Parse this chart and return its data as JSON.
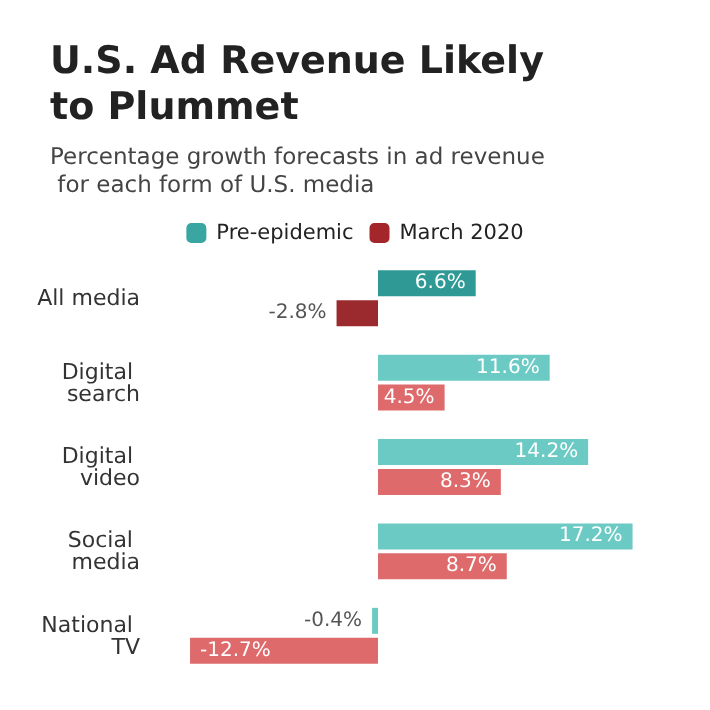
{
  "chart_data": {
    "type": "bar",
    "orientation": "horizontal",
    "title": "U.S. Ad Revenue Likely to Plummet",
    "subtitle": "Percentage growth forecasts in ad revenue for each form of U.S. media",
    "categories": [
      "All media",
      "Digital search",
      "Digital video",
      "Social media",
      "National TV"
    ],
    "series": [
      {
        "name": "Pre-epidemic",
        "color": "#3aa6a1",
        "colors": [
          "#2f9a95",
          "#6ccac5",
          "#6ccac5",
          "#6ccac5",
          "#6ccac5"
        ],
        "values": [
          6.6,
          11.6,
          14.2,
          17.2,
          -0.4
        ],
        "value_labels": [
          "6.6%",
          "11.6%",
          "14.2%",
          "17.2%",
          "-0.4%"
        ]
      },
      {
        "name": "March 2020",
        "color": "#a3262a",
        "colors": [
          "#9b2a2e",
          "#df6a6c",
          "#df6a6c",
          "#df6a6c",
          "#df6a6c"
        ],
        "values": [
          -2.8,
          4.5,
          8.3,
          8.7,
          -12.7
        ],
        "value_labels": [
          "-2.8%",
          "4.5%",
          "8.3%",
          "8.7%",
          "-12.7%"
        ]
      }
    ],
    "tick_labels": "y",
    "legend": "top",
    "grid": false
  }
}
